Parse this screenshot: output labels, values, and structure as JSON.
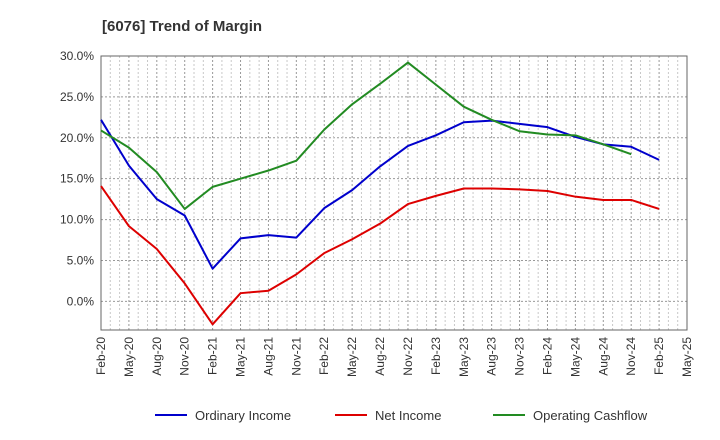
{
  "chart_data": {
    "type": "line",
    "title": "[6076]  Trend of Margin",
    "xlabel": "",
    "ylabel": "",
    "x_ticks": [
      "Feb-20",
      "May-20",
      "Aug-20",
      "Nov-20",
      "Feb-21",
      "May-21",
      "Aug-21",
      "Nov-21",
      "Feb-22",
      "May-22",
      "Aug-22",
      "Nov-22",
      "Feb-23",
      "May-23",
      "Aug-23",
      "Nov-23",
      "Feb-24",
      "May-24",
      "Aug-24",
      "Nov-24",
      "Feb-25",
      "May-25"
    ],
    "y_ticks": [
      "30.0%",
      "25.0%",
      "20.0%",
      "15.0%",
      "10.0%",
      "5.0%",
      "0.0%"
    ],
    "y_tick_values": [
      30,
      25,
      20,
      15,
      10,
      5,
      0
    ],
    "ylim": [
      -3.5,
      30
    ],
    "grid": true,
    "legend_position": "bottom",
    "series": [
      {
        "name": "Ordinary Income",
        "color": "#0000cc",
        "values": [
          22.2,
          16.6,
          12.5,
          10.5,
          4.0,
          7.7,
          8.1,
          7.8,
          11.4,
          13.6,
          16.5,
          19.0,
          20.3,
          21.9,
          22.1,
          21.7,
          21.3,
          20.1,
          19.2,
          18.9,
          17.3,
          null
        ]
      },
      {
        "name": "Net Income",
        "color": "#dd0000",
        "values": [
          14.1,
          9.2,
          6.4,
          2.2,
          -2.8,
          1.0,
          1.3,
          3.3,
          5.9,
          7.6,
          9.5,
          11.9,
          12.9,
          13.8,
          13.8,
          13.7,
          13.5,
          12.8,
          12.4,
          12.4,
          11.3,
          null
        ]
      },
      {
        "name": "Operating Cashflow",
        "color": "#228b22",
        "values": [
          20.9,
          18.8,
          15.8,
          11.3,
          14.0,
          15.0,
          16.0,
          17.2,
          21.0,
          24.1,
          26.6,
          29.2,
          26.5,
          23.8,
          22.2,
          20.8,
          20.4,
          20.3,
          19.2,
          18.0,
          null,
          null
        ]
      }
    ]
  }
}
